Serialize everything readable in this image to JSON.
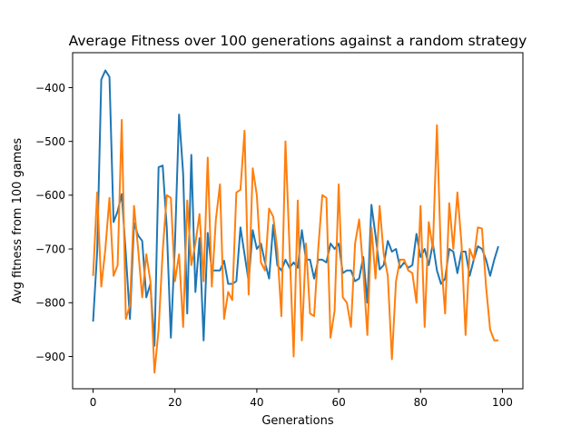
{
  "chart_data": {
    "type": "line",
    "title": "Average Fitness over 100 generations against a random strategy",
    "xlabel": "Generations",
    "ylabel": "Avg fitness from 100 games",
    "xlim": [
      -5,
      105
    ],
    "ylim": [
      -960,
      -335
    ],
    "xticks": [
      0,
      20,
      40,
      60,
      80,
      100
    ],
    "yticks": [
      -900,
      -800,
      -700,
      -600,
      -500,
      -400
    ],
    "grid": false,
    "series": [
      {
        "color": "#1f77b4",
        "values": [
          -835,
          -705,
          -385,
          -368,
          -380,
          -650,
          -630,
          -598,
          -710,
          -830,
          -652,
          -675,
          -685,
          -790,
          -765,
          -880,
          -548,
          -545,
          -660,
          -865,
          -690,
          -450,
          -560,
          -820,
          -525,
          -780,
          -680,
          -870,
          -670,
          -740,
          -740,
          -740,
          -722,
          -765,
          -765,
          -760,
          -660,
          -710,
          -760,
          -665,
          -700,
          -690,
          -725,
          -755,
          -655,
          -730,
          -740,
          -720,
          -735,
          -725,
          -735,
          -665,
          -720,
          -720,
          -755,
          -720,
          -720,
          -725,
          -690,
          -700,
          -690,
          -745,
          -740,
          -740,
          -760,
          -755,
          -715,
          -800,
          -618,
          -675,
          -738,
          -730,
          -685,
          -705,
          -700,
          -735,
          -725,
          -735,
          -730,
          -672,
          -715,
          -700,
          -730,
          -690,
          -740,
          -765,
          -755,
          -700,
          -705,
          -745,
          -705,
          -705,
          -750,
          -720,
          -695,
          -700,
          -720,
          -750,
          -720,
          -695
        ]
      },
      {
        "color": "#ff7f0e",
        "values": [
          -750,
          -595,
          -770,
          -700,
          -605,
          -750,
          -730,
          -460,
          -830,
          -805,
          -620,
          -700,
          -790,
          -710,
          -760,
          -930,
          -850,
          -705,
          -600,
          -605,
          -760,
          -710,
          -845,
          -610,
          -730,
          -690,
          -635,
          -760,
          -530,
          -770,
          -645,
          -580,
          -830,
          -780,
          -795,
          -595,
          -590,
          -480,
          -785,
          -550,
          -600,
          -725,
          -740,
          -625,
          -640,
          -700,
          -825,
          -500,
          -700,
          -900,
          -610,
          -870,
          -690,
          -820,
          -825,
          -700,
          -600,
          -605,
          -865,
          -815,
          -580,
          -790,
          -800,
          -845,
          -690,
          -645,
          -740,
          -860,
          -660,
          -755,
          -620,
          -710,
          -750,
          -905,
          -760,
          -720,
          -720,
          -740,
          -745,
          -800,
          -620,
          -845,
          -650,
          -700,
          -470,
          -720,
          -820,
          -615,
          -700,
          -595,
          -690,
          -860,
          -700,
          -720,
          -660,
          -662,
          -770,
          -850,
          -870,
          -870
        ]
      }
    ]
  }
}
